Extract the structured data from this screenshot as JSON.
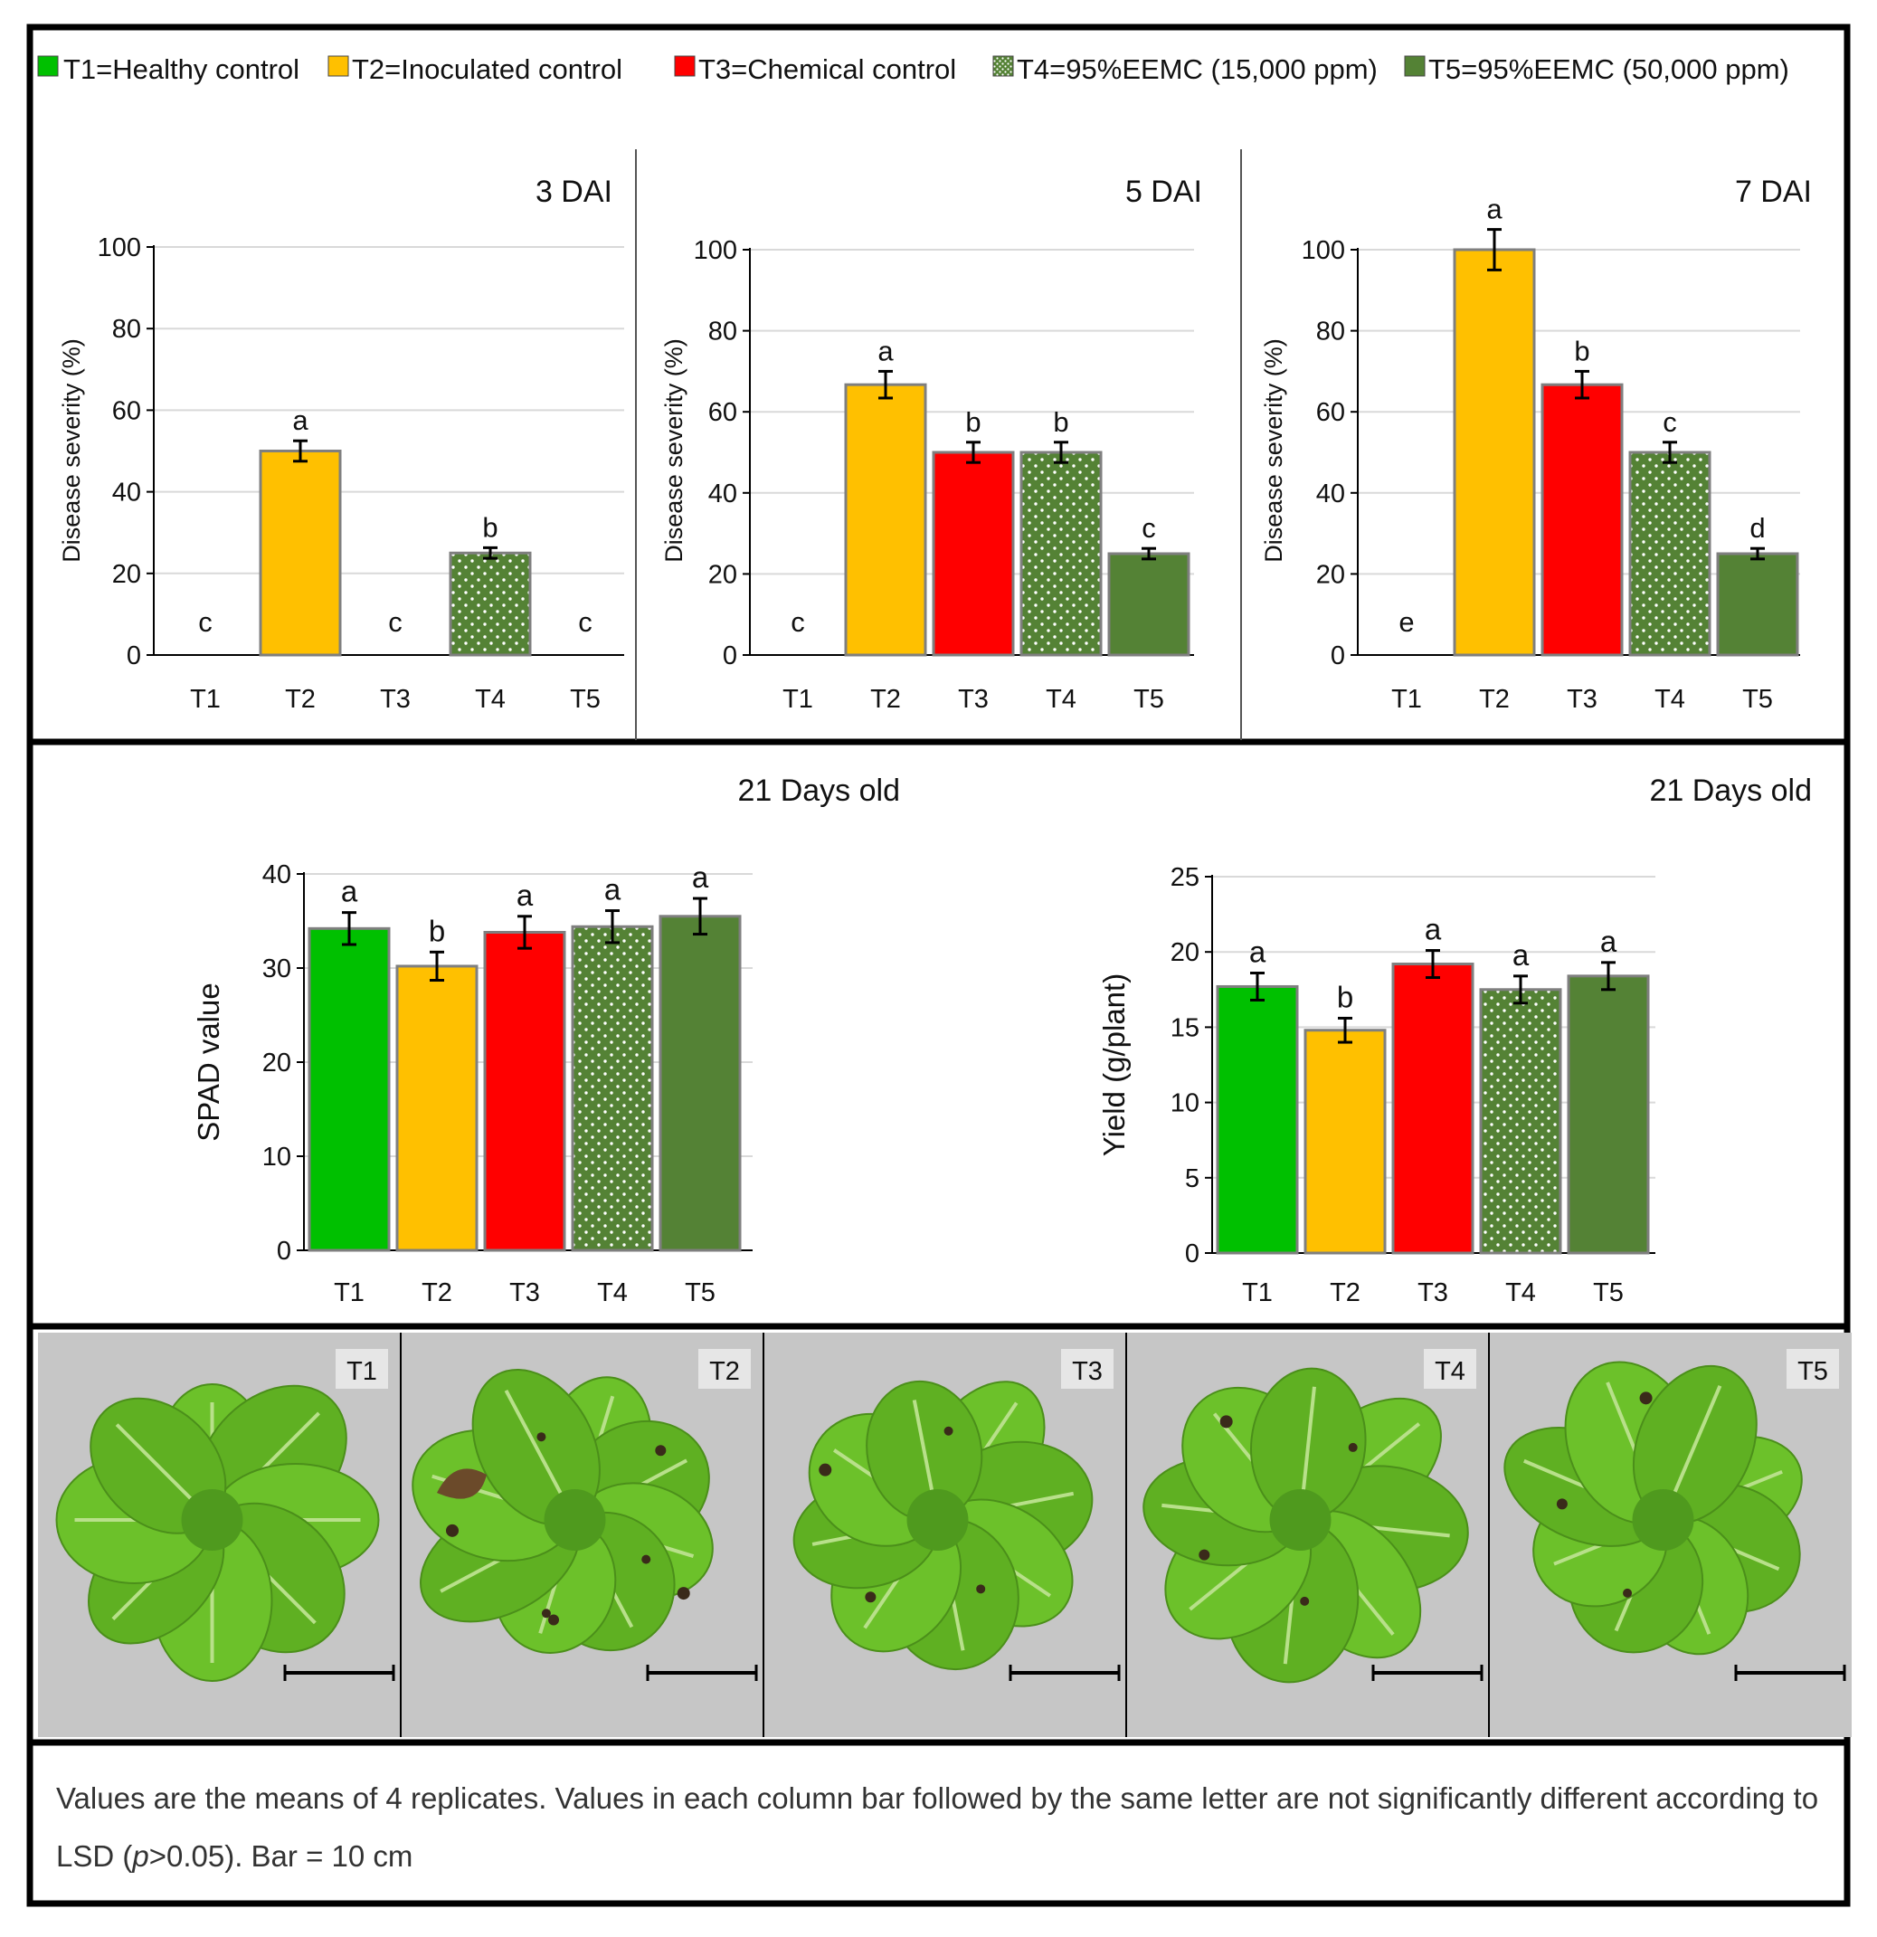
{
  "legend": [
    {
      "label": "T1=Healthy control",
      "color": "#00C000",
      "pattern": "solid"
    },
    {
      "label": "T2=Inoculated control",
      "color": "#FFC000",
      "pattern": "solid"
    },
    {
      "label": "T3=Chemical control",
      "color": "#FF0000",
      "pattern": "solid"
    },
    {
      "label": "T4=95%EEMC (15,000 ppm)",
      "color": "#548235",
      "pattern": "dots"
    },
    {
      "label": "T5=95%EEMC (50,000 ppm)",
      "color": "#548235",
      "pattern": "solid"
    }
  ],
  "chart_data": [
    {
      "type": "bar",
      "title": "3 DAI",
      "ylabel": "Disease severity (%)",
      "ylim": [
        0,
        100
      ],
      "yticks": [
        0,
        20,
        40,
        60,
        80,
        100
      ],
      "categories": [
        "T1",
        "T2",
        "T3",
        "T4",
        "T5"
      ],
      "values": [
        0,
        50,
        0,
        25,
        0
      ],
      "errors": [
        0,
        2.5,
        0,
        1.3,
        0
      ],
      "letters": [
        "c",
        "a",
        "c",
        "b",
        "c"
      ],
      "grid": true
    },
    {
      "type": "bar",
      "title": "5 DAI",
      "ylabel": "Disease severity (%)",
      "ylim": [
        0,
        100
      ],
      "yticks": [
        0,
        20,
        40,
        60,
        80,
        100
      ],
      "categories": [
        "T1",
        "T2",
        "T3",
        "T4",
        "T5"
      ],
      "values": [
        0,
        66.7,
        50,
        50,
        25
      ],
      "errors": [
        0,
        3.3,
        2.5,
        2.5,
        1.3
      ],
      "letters": [
        "c",
        "a",
        "b",
        "b",
        "c"
      ],
      "grid": true
    },
    {
      "type": "bar",
      "title": "7 DAI",
      "ylabel": "Disease severity (%)",
      "ylim": [
        0,
        100
      ],
      "yticks": [
        0,
        20,
        40,
        60,
        80,
        100
      ],
      "categories": [
        "T1",
        "T2",
        "T3",
        "T4",
        "T5"
      ],
      "values": [
        0,
        100,
        66.7,
        50,
        25
      ],
      "errors": [
        0,
        5,
        3.3,
        2.5,
        1.3
      ],
      "letters": [
        "e",
        "a",
        "b",
        "c",
        "d"
      ],
      "grid": true
    },
    {
      "type": "bar",
      "title": "21 Days old",
      "ylabel": "SPAD value",
      "ylim": [
        0,
        40
      ],
      "yticks": [
        0,
        10,
        20,
        30,
        40
      ],
      "categories": [
        "T1",
        "T2",
        "T3",
        "T4",
        "T5"
      ],
      "values": [
        34.2,
        30.2,
        33.8,
        34.4,
        35.5
      ],
      "errors": [
        1.7,
        1.5,
        1.7,
        1.7,
        1.9
      ],
      "letters": [
        "a",
        "b",
        "a",
        "a",
        "a"
      ],
      "grid": true
    },
    {
      "type": "bar",
      "title": "21 Days old",
      "ylabel": "Yield (g/plant)",
      "ylim": [
        0,
        25
      ],
      "yticks": [
        0,
        5,
        10,
        15,
        20,
        25
      ],
      "categories": [
        "T1",
        "T2",
        "T3",
        "T4",
        "T5"
      ],
      "values": [
        17.7,
        14.8,
        19.2,
        17.5,
        18.4
      ],
      "errors": [
        0.9,
        0.8,
        0.9,
        0.9,
        0.9
      ],
      "letters": [
        "a",
        "b",
        "a",
        "a",
        "a"
      ],
      "grid": true
    }
  ],
  "photos": [
    {
      "label": "T1",
      "health": "healthy"
    },
    {
      "label": "T2",
      "health": "severe"
    },
    {
      "label": "T3",
      "health": "mild"
    },
    {
      "label": "T4",
      "health": "mild"
    },
    {
      "label": "T5",
      "health": "slight"
    }
  ],
  "caption": {
    "part1": "Values are the means of 4 replicates. Values in each column bar followed by the same letter are not significantly different according to LSD (",
    "p": "p",
    "part2": ">0.05). Bar = 10 cm"
  }
}
